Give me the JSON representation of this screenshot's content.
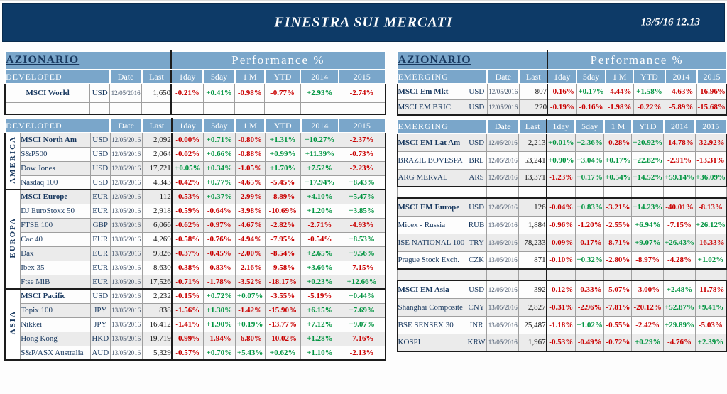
{
  "banner": {
    "title": "FINESTRA SUI MERCATI",
    "datetime": "13/5/16 12.13"
  },
  "colors": {
    "banner_navy": "#0d3a67",
    "header_blue": "#7aa6ca",
    "navy_text": "#17375e",
    "positive_green": "#009440",
    "negative_red": "#c90000",
    "shade_gray": "#ebebeb"
  },
  "left_table": {
    "title": "AZIONARIO",
    "performance_label": "Performance %",
    "date_label": "Date",
    "last_label": "Last",
    "perf_headers": [
      "1day",
      "5day",
      "1 M",
      "YTD",
      "2014",
      "2015"
    ],
    "perf_keys": [
      "1day",
      "5day",
      "1m",
      "ytd",
      "2014",
      "2015"
    ],
    "sections": [
      {
        "header_label": "DEVELOPED",
        "show_title": true,
        "blocks": [
          {
            "region": "",
            "rows": [
              {
                "name": "MSCI World",
                "bold": true,
                "center": true,
                "ccy": "USD",
                "date": "12/05/2016",
                "last": "1,650",
                "perf": [
                  "-0.21%",
                  "+0.41%",
                  "-0.98%",
                  "-0.77%",
                  "+2.93%",
                  "-2.74%"
                ],
                "shaded": false
              },
              {
                "spacer": true,
                "shaded": false
              }
            ]
          }
        ]
      },
      {
        "header_label": "DEVELOPED",
        "show_title": false,
        "blocks": [
          {
            "region": "AMERICA",
            "rows": [
              {
                "name": "MSCI North Am",
                "bold": true,
                "ccy": "USD",
                "date": "12/05/2016",
                "last": "2,092",
                "perf": [
                  "-0.00%",
                  "+0.71%",
                  "-0.80%",
                  "+1.31%",
                  "+10.27%",
                  "-2.37%"
                ],
                "shaded": true
              },
              {
                "name": "S&P500",
                "ccy": "USD",
                "date": "12/05/2016",
                "last": "2,064",
                "perf": [
                  "-0.02%",
                  "+0.66%",
                  "-0.88%",
                  "+0.99%",
                  "+11.39%",
                  "-0.73%"
                ],
                "shaded": false
              },
              {
                "name": "Dow Jones",
                "ccy": "USD",
                "date": "12/05/2016",
                "last": "17,721",
                "perf": [
                  "+0.05%",
                  "+0.34%",
                  "-1.05%",
                  "+1.70%",
                  "+7.52%",
                  "-2.23%"
                ],
                "shaded": true
              },
              {
                "name": "Nasdaq 100",
                "ccy": "USD",
                "date": "12/05/2016",
                "last": "4,343",
                "perf": [
                  "-0.42%",
                  "+0.77%",
                  "-4.65%",
                  "-5.45%",
                  "+17.94%",
                  "+8.43%"
                ],
                "shaded": false
              }
            ]
          },
          {
            "region": "EUROPA",
            "rows": [
              {
                "name": "MSCI Europe",
                "bold": true,
                "ccy": "EUR",
                "date": "12/05/2016",
                "last": "112",
                "perf": [
                  "-0.53%",
                  "+0.37%",
                  "-2.99%",
                  "-8.89%",
                  "+4.10%",
                  "+5.47%"
                ],
                "shaded": true
              },
              {
                "name": "DJ EuroStoxx 50",
                "ccy": "EUR",
                "date": "13/05/2016",
                "last": "2,918",
                "perf": [
                  "-0.59%",
                  "-0.64%",
                  "-3.98%",
                  "-10.69%",
                  "+1.20%",
                  "+3.85%"
                ],
                "shaded": false
              },
              {
                "name": "FTSE 100",
                "ccy": "GBP",
                "date": "13/05/2016",
                "last": "6,066",
                "perf": [
                  "-0.62%",
                  "-0.97%",
                  "-4.67%",
                  "-2.82%",
                  "-2.71%",
                  "-4.93%"
                ],
                "shaded": true
              },
              {
                "name": "Cac 40",
                "ccy": "EUR",
                "date": "13/05/2016",
                "last": "4,269",
                "perf": [
                  "-0.58%",
                  "-0.76%",
                  "-4.94%",
                  "-7.95%",
                  "-0.54%",
                  "+8.53%"
                ],
                "shaded": false
              },
              {
                "name": "Dax",
                "ccy": "EUR",
                "date": "13/05/2016",
                "last": "9,826",
                "perf": [
                  "-0.37%",
                  "-0.45%",
                  "-2.00%",
                  "-8.54%",
                  "+2.65%",
                  "+9.56%"
                ],
                "shaded": true
              },
              {
                "name": "Ibex 35",
                "ccy": "EUR",
                "date": "13/05/2016",
                "last": "8,630",
                "perf": [
                  "-0.38%",
                  "-0.83%",
                  "-2.16%",
                  "-9.58%",
                  "+3.66%",
                  "-7.15%"
                ],
                "shaded": false
              },
              {
                "name": "Ftse MiB",
                "ccy": "EUR",
                "date": "13/05/2016",
                "last": "17,526",
                "perf": [
                  "-0.71%",
                  "-1.78%",
                  "-3.52%",
                  "-18.17%",
                  "+0.23%",
                  "+12.66%"
                ],
                "shaded": true
              }
            ]
          },
          {
            "region": "ASIA",
            "rows": [
              {
                "name": "MSCI Pacific",
                "bold": true,
                "ccy": "USD",
                "date": "12/05/2016",
                "last": "2,232",
                "perf": [
                  "-0.15%",
                  "+0.72%",
                  "+0.07%",
                  "-3.55%",
                  "-5.19%",
                  "+0.44%"
                ],
                "shaded": false
              },
              {
                "name": "Topix 100",
                "ccy": "JPY",
                "date": "13/05/2016",
                "last": "838",
                "perf": [
                  "-1.56%",
                  "+1.30%",
                  "-1.42%",
                  "-15.90%",
                  "+6.15%",
                  "+7.69%"
                ],
                "shaded": true
              },
              {
                "name": "Nikkei",
                "ccy": "JPY",
                "date": "13/05/2016",
                "last": "16,412",
                "perf": [
                  "-1.41%",
                  "+1.90%",
                  "+0.19%",
                  "-13.77%",
                  "+7.12%",
                  "+9.07%"
                ],
                "shaded": false
              },
              {
                "name": "Hong Kong",
                "ccy": "HKD",
                "date": "13/05/2016",
                "last": "19,719",
                "perf": [
                  "-0.99%",
                  "-1.94%",
                  "-6.80%",
                  "-10.02%",
                  "+1.28%",
                  "-7.16%"
                ],
                "shaded": true
              },
              {
                "name": "S&P/ASX Australia",
                "ccy": "AUD",
                "date": "13/05/2016",
                "last": "5,329",
                "perf": [
                  "-0.57%",
                  "+0.70%",
                  "+5.43%",
                  "+0.62%",
                  "+1.10%",
                  "-2.13%"
                ],
                "shaded": false
              }
            ]
          }
        ]
      }
    ]
  },
  "right_table": {
    "title": "AZIONARIO",
    "performance_label": "Performance %",
    "date_label": "Date",
    "last_label": "Last",
    "perf_headers": [
      "1day",
      "5day",
      "1 M",
      "YTD",
      "2014",
      "2015"
    ],
    "perf_keys": [
      "1day",
      "5day",
      "1m",
      "ytd",
      "2014",
      "2015"
    ],
    "sections": [
      {
        "header_label": "EMERGING",
        "show_title": true,
        "blocks": [
          {
            "region": "",
            "rows": [
              {
                "name": "MSCI Em Mkt",
                "bold": true,
                "ccy": "USD",
                "date": "12/05/2016",
                "last": "807",
                "perf": [
                  "-0.16%",
                  "+0.17%",
                  "-4.44%",
                  "+1.58%",
                  "-4.63%",
                  "-16.96%"
                ],
                "shaded": false
              },
              {
                "name": "MSCI EM BRIC",
                "ccy": "USD",
                "date": "12/05/2016",
                "last": "220",
                "perf": [
                  "-0.19%",
                  "-0.16%",
                  "-1.98%",
                  "-0.22%",
                  "-5.89%",
                  "-15.68%"
                ],
                "shaded": true
              }
            ]
          }
        ]
      },
      {
        "header_label": "EMERGING",
        "show_title": false,
        "blocks": [
          {
            "region": "",
            "rows": [
              {
                "name": "MSCI EM Lat Am",
                "bold": true,
                "ccy": "USD",
                "date": "12/05/2016",
                "last": "2,213",
                "perf": [
                  "+0.01%",
                  "+2.36%",
                  "-0.28%",
                  "+20.92%",
                  "-14.78%",
                  "-32.92%"
                ],
                "shaded": true
              },
              {
                "name": "BRAZIL BOVESPA",
                "ccy": "BRL",
                "date": "12/05/2016",
                "last": "53,241",
                "perf": [
                  "+0.90%",
                  "+3.04%",
                  "+0.17%",
                  "+22.82%",
                  "-2.91%",
                  "-13.31%"
                ],
                "shaded": false
              },
              {
                "name": "ARG MERVAL",
                "ccy": "ARS",
                "date": "12/05/2016",
                "last": "13,371",
                "perf": [
                  "-1.23%",
                  "+0.17%",
                  "+0.54%",
                  "+14.52%",
                  "+59.14%",
                  "+36.09%"
                ],
                "shaded": true
              }
            ]
          },
          {
            "spacer": true,
            "shaded": false
          },
          {
            "region": "",
            "rows": [
              {
                "name": "MSCI EM Europe",
                "bold": true,
                "ccy": "USD",
                "date": "12/05/2016",
                "last": "126",
                "perf": [
                  "-0.04%",
                  "+0.83%",
                  "-3.21%",
                  "+14.23%",
                  "-40.01%",
                  "-8.13%"
                ],
                "shaded": true
              },
              {
                "name": "Micex - Russia",
                "ccy": "RUB",
                "date": "13/05/2016",
                "last": "1,884",
                "perf": [
                  "-0.96%",
                  "-1.20%",
                  "-2.55%",
                  "+6.94%",
                  "-7.15%",
                  "+26.12%"
                ],
                "shaded": false
              },
              {
                "name": "ISE NATIONAL 100",
                "ccy": "TRY",
                "date": "13/05/2016",
                "last": "78,233",
                "perf": [
                  "-0.09%",
                  "-0.17%",
                  "-8.71%",
                  "+9.07%",
                  "+26.43%",
                  "-16.33%"
                ],
                "shaded": true
              },
              {
                "name": "Prague Stock Exch.",
                "ccy": "CZK",
                "date": "13/05/2016",
                "last": "871",
                "perf": [
                  "-0.10%",
                  "+0.32%",
                  "-2.80%",
                  "-8.97%",
                  "-4.28%",
                  "+1.02%"
                ],
                "shaded": false
              }
            ]
          },
          {
            "spacer": true,
            "shaded": true
          },
          {
            "region": "",
            "rows": [
              {
                "name": "MSCI EM Asia",
                "bold": true,
                "ccy": "USD",
                "date": "12/05/2016",
                "last": "392",
                "perf": [
                  "-0.12%",
                  "-0.33%",
                  "-5.07%",
                  "-3.00%",
                  "+2.48%",
                  "-11.78%"
                ],
                "shaded": false
              },
              {
                "name": "Shanghai Composite",
                "ccy": "CNY",
                "date": "13/05/2016",
                "last": "2,827",
                "perf": [
                  "-0.31%",
                  "-2.96%",
                  "-7.81%",
                  "-20.12%",
                  "+52.87%",
                  "+9.41%"
                ],
                "shaded": true
              },
              {
                "name": "BSE SENSEX 30",
                "ccy": "INR",
                "date": "13/05/2016",
                "last": "25,487",
                "perf": [
                  "-1.18%",
                  "+1.02%",
                  "-0.55%",
                  "-2.42%",
                  "+29.89%",
                  "-5.03%"
                ],
                "shaded": false
              },
              {
                "name": "KOSPI",
                "ccy": "KRW",
                "date": "13/05/2016",
                "last": "1,967",
                "perf": [
                  "-0.53%",
                  "-0.49%",
                  "-0.72%",
                  "+0.29%",
                  "-4.76%",
                  "+2.39%"
                ],
                "shaded": true
              }
            ]
          }
        ]
      }
    ]
  }
}
